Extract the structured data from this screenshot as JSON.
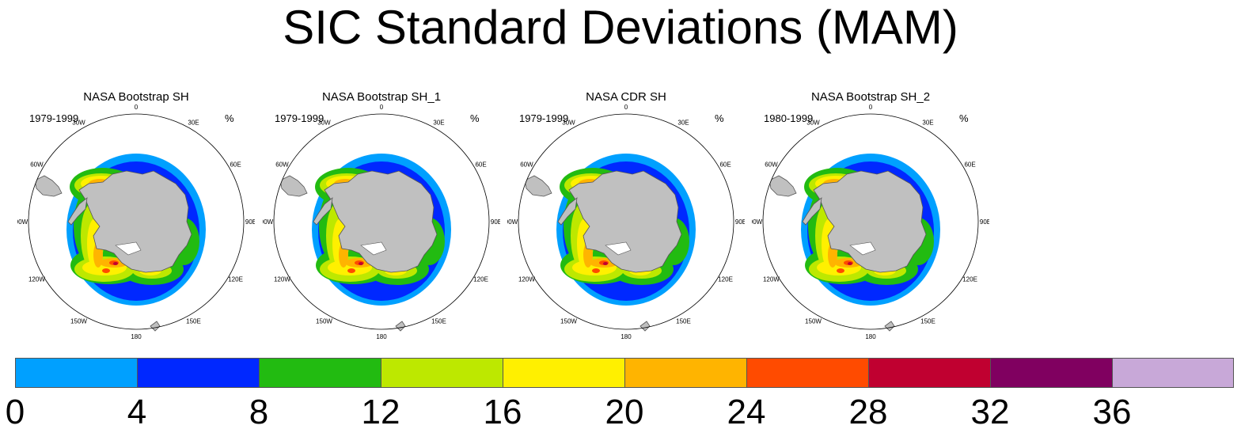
{
  "title": "SIC Standard Deviations (MAM)",
  "panels": [
    {
      "title": "NASA Bootstrap SH",
      "period": "1979-1999",
      "unit": "%"
    },
    {
      "title": "NASA Bootstrap SH_1",
      "period": "1979-1999",
      "unit": "%"
    },
    {
      "title": "NASA CDR SH",
      "period": "1979-1999",
      "unit": "%"
    },
    {
      "title": "NASA Bootstrap SH_2",
      "period": "1980-1999",
      "unit": "%"
    }
  ],
  "longitude_labels": [
    "0",
    "30E",
    "60E",
    "90E",
    "120E",
    "150E",
    "180",
    "150W",
    "120W",
    "90W",
    "60W",
    "30W"
  ],
  "colorbar": {
    "levels": [
      "0",
      "4",
      "8",
      "12",
      "16",
      "20",
      "24",
      "28",
      "32",
      "36"
    ],
    "colors": [
      "#00a0ff",
      "#0028ff",
      "#22bb11",
      "#bde800",
      "#fff000",
      "#ffb400",
      "#ff4b00",
      "#c00030",
      "#800060",
      "#c8a8d8"
    ]
  },
  "map_colors": {
    "land": "#c0c0c0",
    "coast": "#555555",
    "ocean": "#ffffff"
  }
}
